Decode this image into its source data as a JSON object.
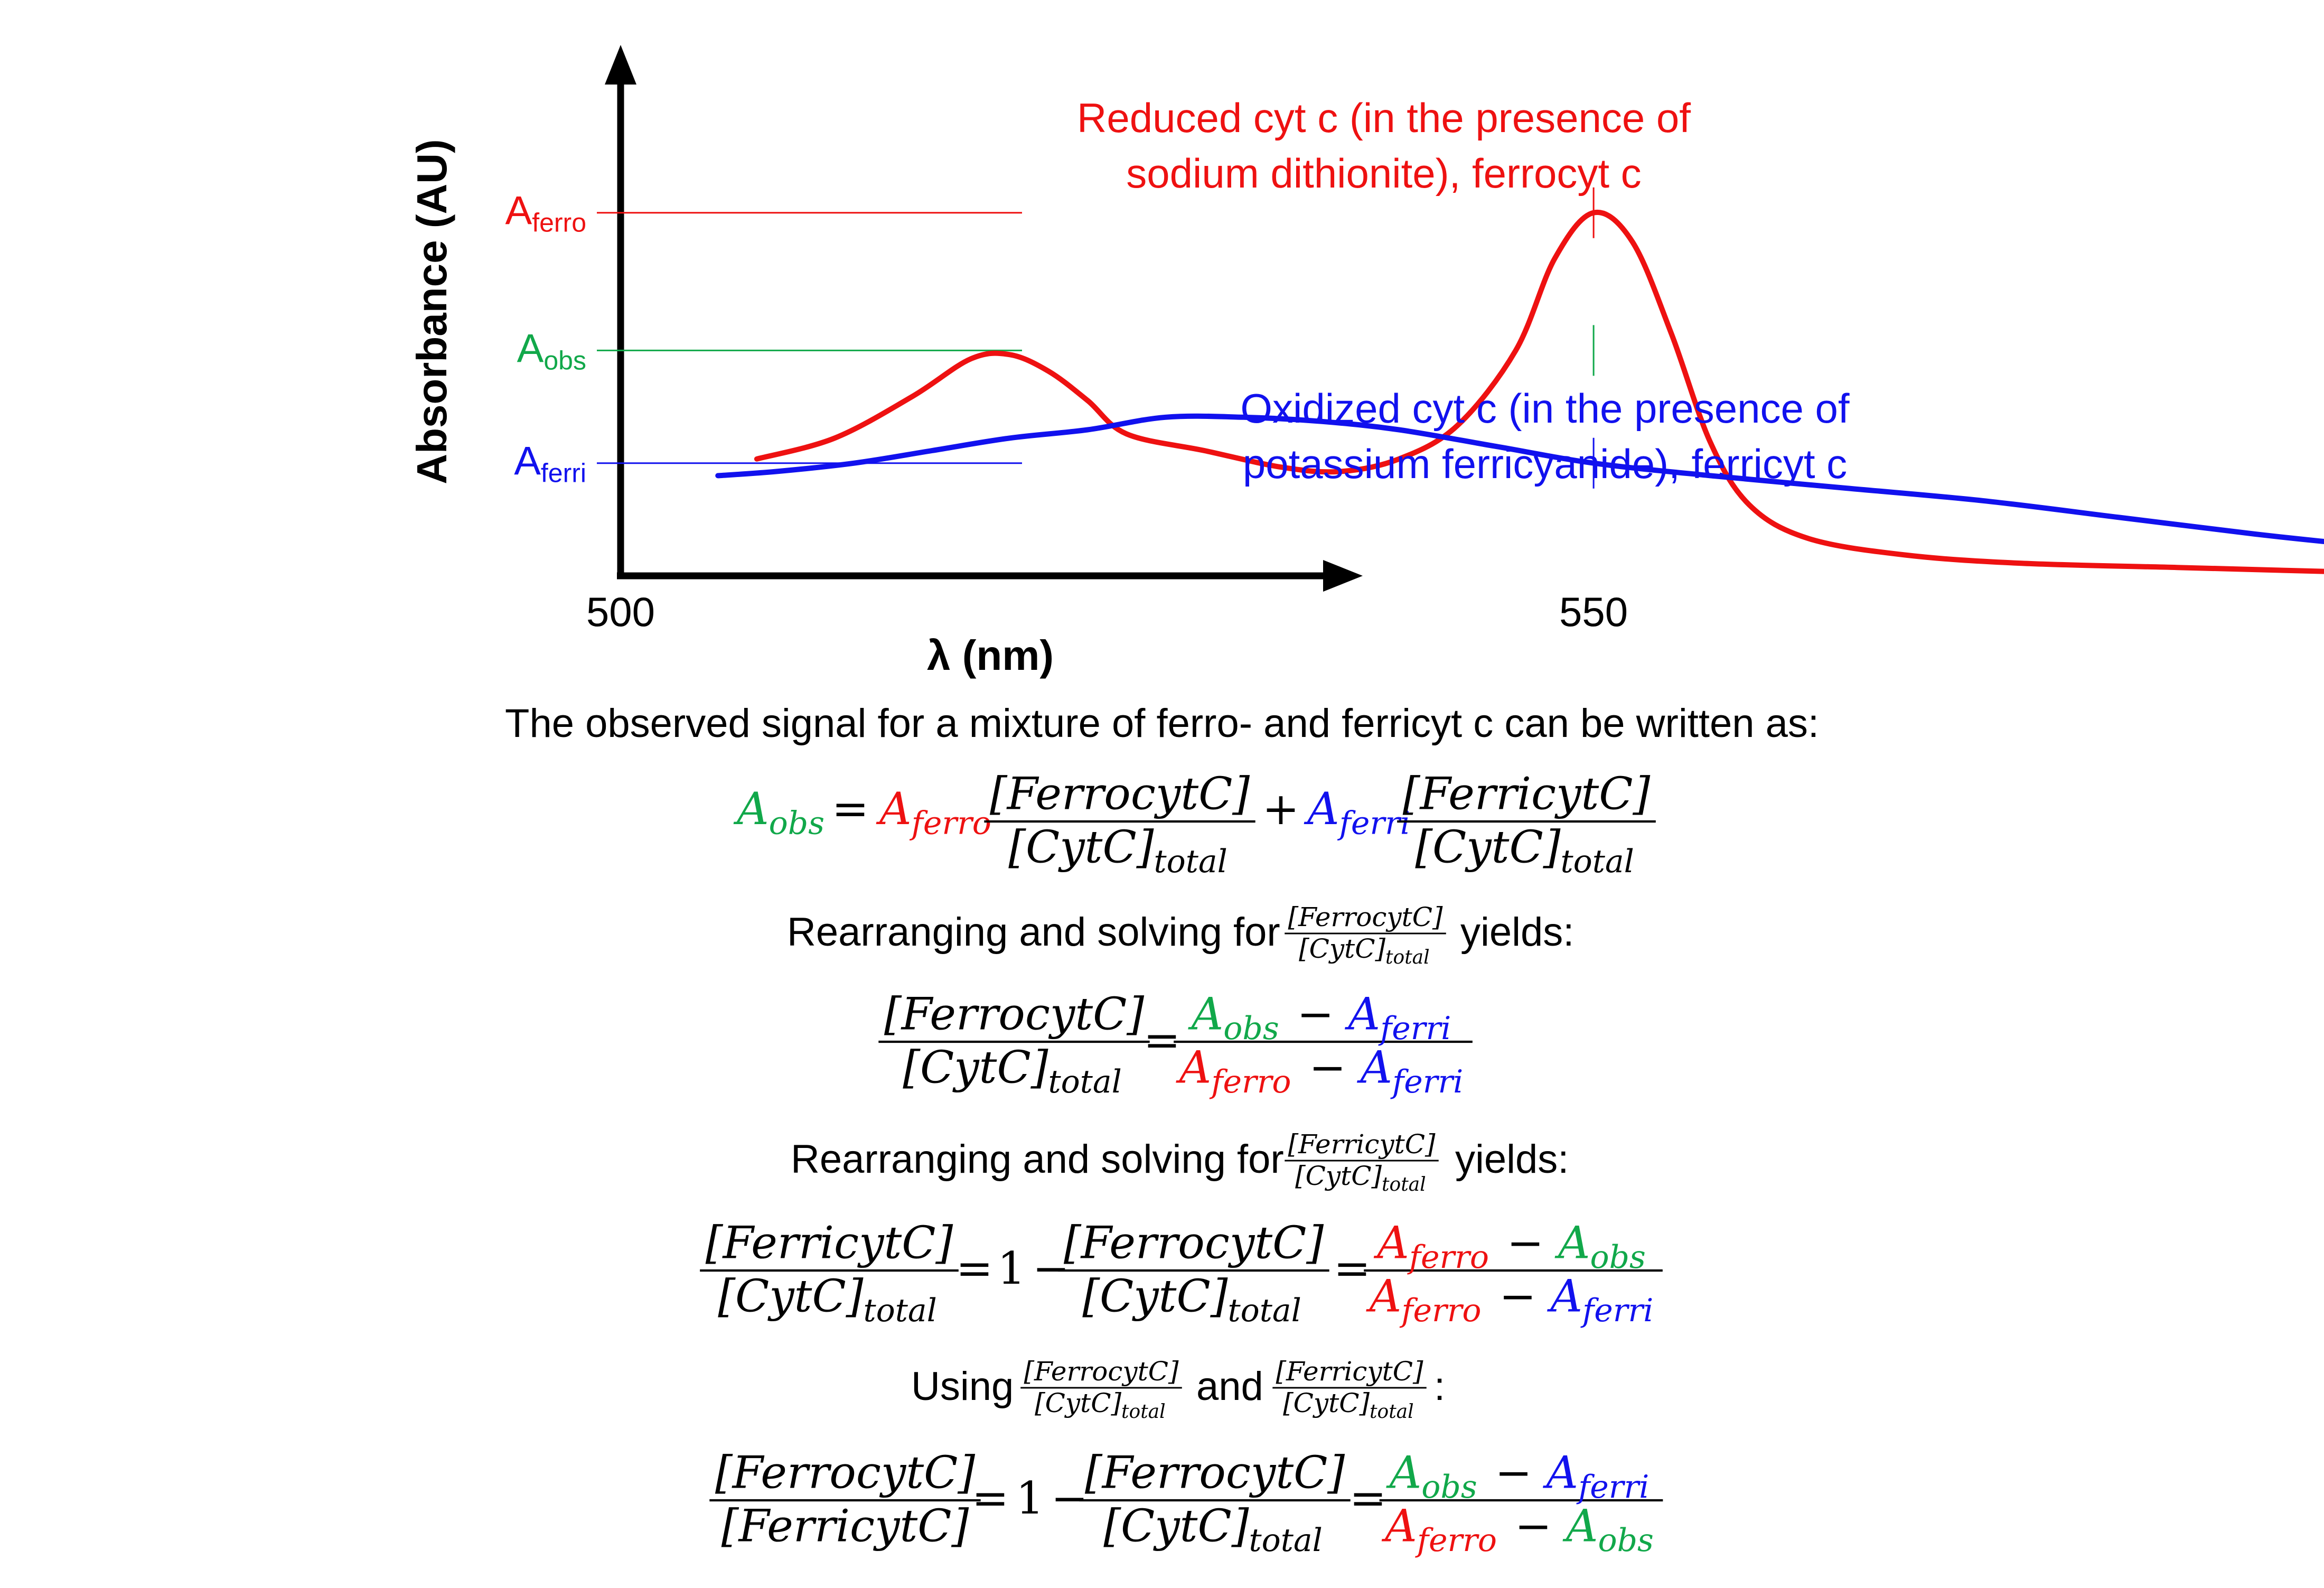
{
  "colors": {
    "ferro": "#ee1111",
    "ferri": "#1111ee",
    "obs": "#11a84a",
    "text": "#000000"
  },
  "chart_data": {
    "type": "line",
    "xlabel": "λ (nm)",
    "ylabel": "Absorbance (AU)",
    "x_ticks": [
      "500",
      "550"
    ],
    "xlim": [
      500,
      595
    ],
    "ylim": [
      0,
      1
    ],
    "reference_wavelength": 550,
    "y_levels": [
      {
        "name": "ferro",
        "prefix": "A",
        "sub": "ferro",
        "value": 0.87
      },
      {
        "name": "obs",
        "prefix": "A",
        "sub": "obs",
        "value": 0.54
      },
      {
        "name": "ferri",
        "prefix": "A",
        "sub": "ferri",
        "value": 0.27
      }
    ],
    "series": [
      {
        "key": "ferro",
        "label_lines": [
          "Reduced cyt c (in the presence of",
          "sodium dithionite), ferrocyt c"
        ],
        "points": [
          [
            507,
            0.28
          ],
          [
            511,
            0.33
          ],
          [
            515,
            0.43
          ],
          [
            518,
            0.52
          ],
          [
            520,
            0.53
          ],
          [
            522,
            0.49
          ],
          [
            524,
            0.42
          ],
          [
            526,
            0.34
          ],
          [
            530,
            0.3
          ],
          [
            534,
            0.26
          ],
          [
            537,
            0.25
          ],
          [
            540,
            0.28
          ],
          [
            543,
            0.36
          ],
          [
            546,
            0.54
          ],
          [
            548,
            0.76
          ],
          [
            550,
            0.87
          ],
          [
            552,
            0.8
          ],
          [
            554,
            0.58
          ],
          [
            556,
            0.32
          ],
          [
            558,
            0.17
          ],
          [
            561,
            0.09
          ],
          [
            566,
            0.05
          ],
          [
            572,
            0.03
          ],
          [
            580,
            0.02
          ],
          [
            588,
            0.01
          ]
        ]
      },
      {
        "key": "ferri",
        "label_lines": [
          "Oxidized cyt c (in the presence of",
          "potassium  ferricyanide), ferricyt c"
        ],
        "points": [
          [
            505,
            0.24
          ],
          [
            508,
            0.25
          ],
          [
            512,
            0.27
          ],
          [
            516,
            0.3
          ],
          [
            520,
            0.33
          ],
          [
            524,
            0.35
          ],
          [
            528,
            0.38
          ],
          [
            532,
            0.38
          ],
          [
            536,
            0.37
          ],
          [
            540,
            0.35
          ],
          [
            545,
            0.31
          ],
          [
            550,
            0.27
          ],
          [
            556,
            0.24
          ],
          [
            563,
            0.21
          ],
          [
            570,
            0.18
          ],
          [
            577,
            0.14
          ],
          [
            584,
            0.1
          ],
          [
            588,
            0.08
          ]
        ]
      }
    ]
  },
  "intro_text": "The observed signal for a mixture of ferro- and ferricyt c can be written as:",
  "math": {
    "A": "A",
    "sub_obs": "obs",
    "sub_ferro": "ferro",
    "sub_ferri": "ferri",
    "ferrocyt": "[FerrocytC]",
    "ferricyt": "[FerricytC]",
    "cytc": "[CytC]",
    "total": "total",
    "eq": "=",
    "plus": "+",
    "minus": "−",
    "one": "1"
  },
  "text": {
    "rearr1_pre": "Rearranging and solving for",
    "rearr2_pre": "Rearranging and solving for",
    "yields": "yields:",
    "using": "Using",
    "and": "and",
    "colon": ":"
  }
}
